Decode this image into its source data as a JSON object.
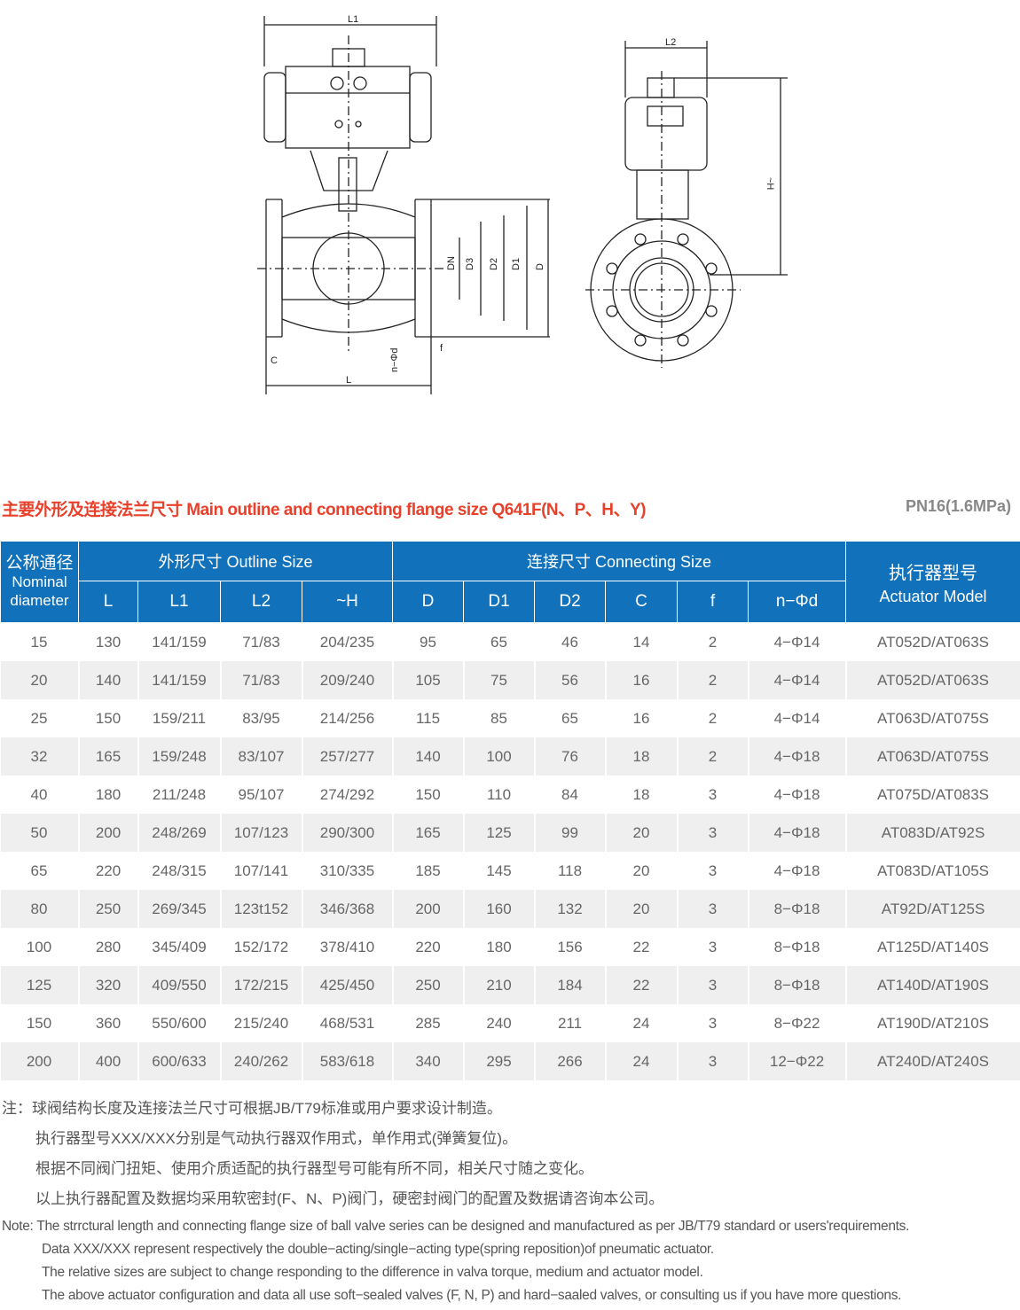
{
  "drawing": {
    "labels": {
      "L1": "L1",
      "L2": "L2",
      "H": "~H",
      "DN": "DN",
      "D3": "D3",
      "D2": "D2",
      "D1": "D1",
      "D": "D",
      "C": "C",
      "L": "L",
      "nd": "n−Φd",
      "f": "f"
    }
  },
  "title": "主要外形及连接法兰尺寸 Main outline and connecting flange size Q641F(N、P、H、Y)",
  "pressure": "PN16(1.6MPa)",
  "table": {
    "group_headers": {
      "nominal": "公称通径",
      "nominal_en1": "Nominal",
      "nominal_en2": "diameter",
      "outline": "外形尺寸 Outline Size",
      "connecting": "连接尺寸 Connecting Size",
      "actuator": "执行器型号",
      "actuator_en": "Actuator Model"
    },
    "columns": [
      "L",
      "L1",
      "L2",
      "~H",
      "D",
      "D1",
      "D2",
      "C",
      "f",
      "n−Φd"
    ],
    "rows": [
      [
        "15",
        "130",
        "141/159",
        "71/83",
        "204/235",
        "95",
        "65",
        "46",
        "14",
        "2",
        "4−Φ14",
        "AT052D/AT063S"
      ],
      [
        "20",
        "140",
        "141/159",
        "71/83",
        "209/240",
        "105",
        "75",
        "56",
        "16",
        "2",
        "4−Φ14",
        "AT052D/AT063S"
      ],
      [
        "25",
        "150",
        "159/211",
        "83/95",
        "214/256",
        "115",
        "85",
        "65",
        "16",
        "2",
        "4−Φ14",
        "AT063D/AT075S"
      ],
      [
        "32",
        "165",
        "159/248",
        "83/107",
        "257/277",
        "140",
        "100",
        "76",
        "18",
        "2",
        "4−Φ18",
        "AT063D/AT075S"
      ],
      [
        "40",
        "180",
        "211/248",
        "95/107",
        "274/292",
        "150",
        "110",
        "84",
        "18",
        "3",
        "4−Φ18",
        "AT075D/AT083S"
      ],
      [
        "50",
        "200",
        "248/269",
        "107/123",
        "290/300",
        "165",
        "125",
        "99",
        "20",
        "3",
        "4−Φ18",
        "AT083D/AT92S"
      ],
      [
        "65",
        "220",
        "248/315",
        "107/141",
        "310/335",
        "185",
        "145",
        "118",
        "20",
        "3",
        "4−Φ18",
        "AT083D/AT105S"
      ],
      [
        "80",
        "250",
        "269/345",
        "123t152",
        "346/368",
        "200",
        "160",
        "132",
        "20",
        "3",
        "8−Φ18",
        "AT92D/AT125S"
      ],
      [
        "100",
        "280",
        "345/409",
        "152/172",
        "378/410",
        "220",
        "180",
        "156",
        "22",
        "3",
        "8−Φ18",
        "AT125D/AT140S"
      ],
      [
        "125",
        "320",
        "409/550",
        "172/215",
        "425/450",
        "250",
        "210",
        "184",
        "22",
        "3",
        "8−Φ18",
        "AT140D/AT190S"
      ],
      [
        "150",
        "360",
        "550/600",
        "215/240",
        "468/531",
        "285",
        "240",
        "211",
        "24",
        "3",
        "8−Φ22",
        "AT190D/AT210S"
      ],
      [
        "200",
        "400",
        "600/633",
        "240/262",
        "583/618",
        "340",
        "295",
        "266",
        "24",
        "3",
        "12−Φ22",
        "AT240D/AT240S"
      ]
    ]
  },
  "notes_cn": [
    "注：球阀结构长度及连接法兰尺寸可根据JB/T79标准或用户要求设计制造。",
    "执行器型号XXX/XXX分别是气动执行器双作用式，单作用式(弹簧复位)。",
    "根据不同阀门扭矩、使用介质适配的执行器型号可能有所不同，相关尺寸随之变化。",
    "以上执行器配置及数据均采用软密封(F、N、P)阀门，硬密封阀门的配置及数据请咨询本公司。"
  ],
  "notes_en": [
    "Note: The strrctural length and connecting flange size of ball valve series can be designed and manufactured as per JB/T79 standard or users'requirements.",
    "Data XXX/XXX represent respectively the double−acting/single−acting type(spring reposition)of pneumatic actuator.",
    "The relative sizes are subject to change responding to the difference in valva torque, medium and actuator model.",
    "The above actuator configuration and data all use soft−sealed valves (F, N, P) and  hard−saaled valves, or consulting us if you have more questions."
  ]
}
